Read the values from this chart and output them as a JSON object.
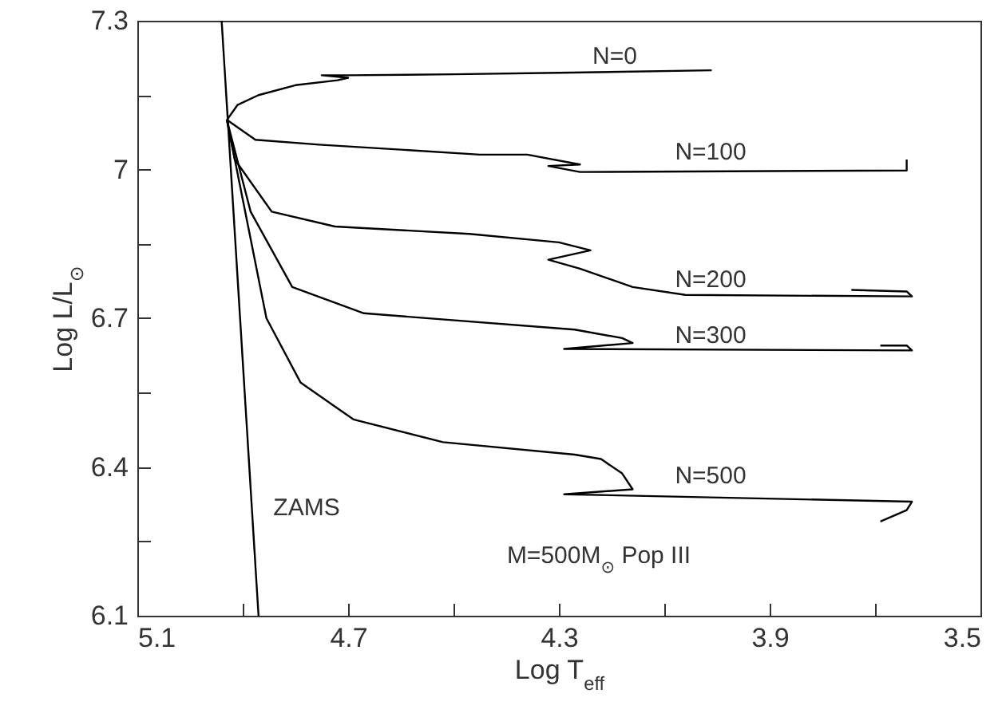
{
  "chart_data": {
    "type": "line",
    "xlabel": "Log T$_{eff}$",
    "ylabel": "Log L/L$_{⊙}$",
    "xlim": [
      5.1,
      3.5
    ],
    "ylim": [
      6.1,
      7.3
    ],
    "xticks": [
      5.1,
      {
        "value": 4.9,
        "label": null
      },
      4.7,
      {
        "value": 4.5,
        "label": null
      },
      4.3,
      {
        "value": 4.1,
        "label": null
      },
      3.9,
      {
        "value": 3.7,
        "label": null
      },
      3.5
    ],
    "yticks": [
      6.1,
      {
        "value": 6.25,
        "label": null
      },
      6.4,
      {
        "value": 6.55,
        "label": null
      },
      6.7,
      {
        "value": 6.85,
        "label": null
      },
      7.0,
      {
        "value": 7.15,
        "label": null
      },
      7.3
    ],
    "grid": false,
    "marker": "none",
    "line_style": "solid",
    "series": [
      {
        "name": "ZAMS",
        "color": "#000000",
        "x": [
          4.94,
          4.87
        ],
        "values": [
          7.3,
          6.1
        ]
      },
      {
        "name": "N=0",
        "color": "#000000",
        "x": [
          4.93,
          4.91,
          4.87,
          4.8,
          4.72,
          4.7,
          4.75,
          4.7,
          4.5,
          4.3,
          4.01
        ],
        "values": [
          7.1,
          7.13,
          7.15,
          7.17,
          7.18,
          7.185,
          7.19,
          7.19,
          7.192,
          7.195,
          7.2
        ]
      },
      {
        "name": "N=100",
        "color": "#000000",
        "x": [
          4.93,
          4.876,
          4.755,
          4.6,
          4.45,
          4.36,
          4.26,
          4.32,
          4.26,
          3.64,
          3.64
        ],
        "values": [
          7.1,
          7.06,
          7.05,
          7.04,
          7.03,
          7.03,
          7.01,
          7.007,
          6.995,
          6.998,
          7.02
        ]
      },
      {
        "name": "N=200",
        "color": "#000000",
        "x": [
          4.93,
          4.915,
          4.845,
          4.725,
          4.47,
          4.3,
          4.24,
          4.32,
          4.26,
          4.16,
          4.06,
          3.63,
          3.64,
          3.745
        ],
        "values": [
          7.1,
          7.02,
          6.915,
          6.885,
          6.87,
          6.853,
          6.837,
          6.818,
          6.8,
          6.763,
          6.747,
          6.744,
          6.754,
          6.757
        ]
      },
      {
        "name": "N=300",
        "color": "#000000",
        "x": [
          4.93,
          4.885,
          4.806,
          4.67,
          4.27,
          4.18,
          4.16,
          4.29,
          3.63,
          3.64,
          3.69
        ],
        "values": [
          7.1,
          6.915,
          6.763,
          6.71,
          6.677,
          6.66,
          6.65,
          6.638,
          6.635,
          6.645,
          6.645
        ]
      },
      {
        "name": "N=500",
        "color": "#000000",
        "x": [
          4.93,
          4.855,
          4.79,
          4.69,
          4.52,
          4.27,
          4.22,
          4.18,
          4.16,
          4.29,
          3.63,
          3.64,
          3.69
        ],
        "values": [
          7.1,
          6.7,
          6.57,
          6.496,
          6.45,
          6.425,
          6.416,
          6.387,
          6.355,
          6.345,
          6.33,
          6.313,
          6.29
        ]
      }
    ],
    "annotations": [
      "M=500M$_{⊙}$ Pop III"
    ]
  }
}
